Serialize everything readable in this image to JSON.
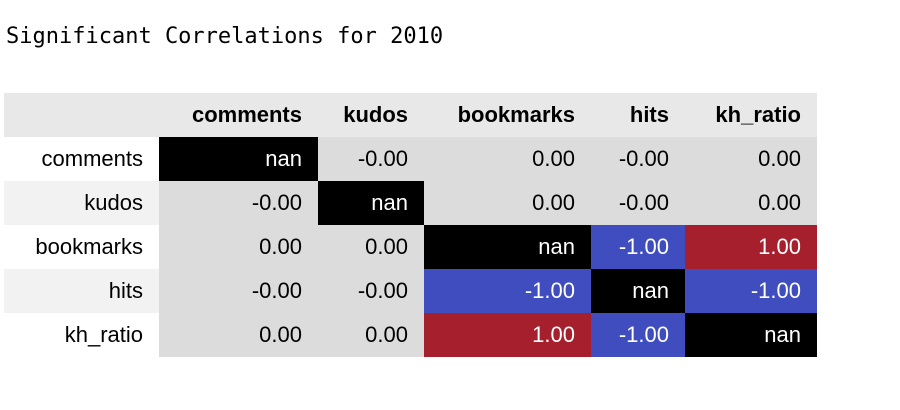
{
  "title": "Significant Correlations for 2010",
  "colors": {
    "diagonal": "#000000",
    "neutral": "#dcdcdc",
    "positive": "#a5202c",
    "negative": "#3f4dbf",
    "header_bg": "#e8e8e8",
    "text_dark": "#000000",
    "text_light": "#ffffff"
  },
  "chart_data": {
    "type": "table",
    "columns": [
      "comments",
      "kudos",
      "bookmarks",
      "hits",
      "kh_ratio"
    ],
    "rows": [
      {
        "label": "comments",
        "values": [
          "nan",
          "-0.00",
          "0.00",
          "-0.00",
          "0.00"
        ]
      },
      {
        "label": "kudos",
        "values": [
          "-0.00",
          "nan",
          "0.00",
          "-0.00",
          "0.00"
        ]
      },
      {
        "label": "bookmarks",
        "values": [
          "0.00",
          "0.00",
          "nan",
          "-1.00",
          "1.00"
        ]
      },
      {
        "label": "hits",
        "values": [
          "-0.00",
          "-0.00",
          "-1.00",
          "nan",
          "-1.00"
        ]
      },
      {
        "label": "kh_ratio",
        "values": [
          "0.00",
          "0.00",
          "1.00",
          "-1.00",
          "nan"
        ]
      }
    ]
  }
}
